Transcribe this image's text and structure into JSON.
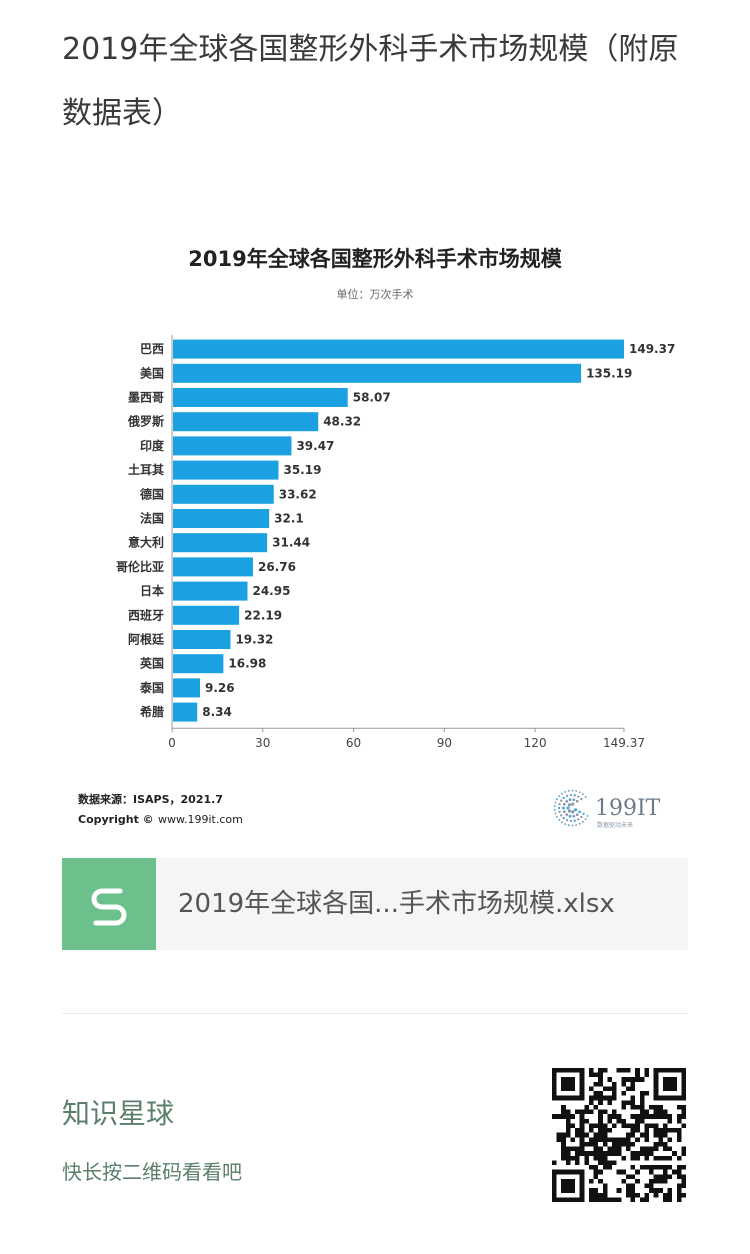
{
  "page": {
    "title": "2019年全球各国整形外科手术市场规模（附原数据表）"
  },
  "chart_data": {
    "type": "bar",
    "orientation": "horizontal",
    "title": "2019年全球各国整形外科手术市场规模",
    "subtitle": "单位：万次手术",
    "categories": [
      "巴西",
      "美国",
      "墨西哥",
      "俄罗斯",
      "印度",
      "土耳其",
      "德国",
      "法国",
      "意大利",
      "哥伦比亚",
      "日本",
      "西班牙",
      "阿根廷",
      "英国",
      "泰国",
      "希腊"
    ],
    "values": [
      149.37,
      135.19,
      58.07,
      48.32,
      39.47,
      35.19,
      33.62,
      32.1,
      31.44,
      26.76,
      24.95,
      22.19,
      19.32,
      16.98,
      9.26,
      8.34
    ],
    "value_labels": [
      "149.37",
      "135.19",
      "58.07",
      "48.32",
      "39.47",
      "35.19",
      "33.62",
      "32.1",
      "31.44",
      "26.76",
      "24.95",
      "22.19",
      "19.32",
      "16.98",
      "9.26",
      "8.34"
    ],
    "xticks": [
      "0",
      "30",
      "60",
      "90",
      "120",
      "149.37"
    ],
    "xtick_values": [
      0,
      30,
      60,
      90,
      120,
      149.37
    ],
    "xlim": [
      0,
      149.37
    ],
    "bar_color": "#1ba1e2",
    "source": "数据来源：ISAPS，2021.7",
    "copyright_label": "Copyright ©",
    "copyright_site": "www.199it.com",
    "logo_text": "199IT",
    "logo_tagline": "数据驱动未来"
  },
  "file": {
    "name": "2019年全球各国...手术市场规模.xlsx",
    "icon_color": "#6cc08b"
  },
  "promo": {
    "title": "知识星球",
    "subtitle": "快长按二维码看看吧"
  }
}
